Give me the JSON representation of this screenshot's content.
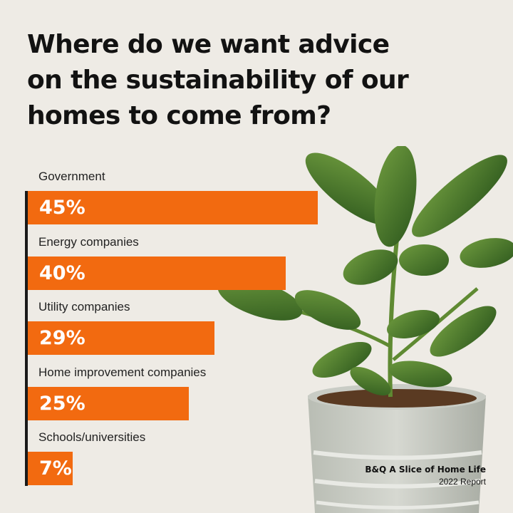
{
  "title_lines": [
    "Where do we want advice",
    "on the sustainability of our",
    "homes to come from?"
  ],
  "chart_data": {
    "type": "bar",
    "orientation": "horizontal",
    "title": "Where do we want advice on the sustainability of our homes to come from?",
    "categories": [
      "Government",
      "Energy companies",
      "Utility companies",
      "Home improvement companies",
      "Schools/universities"
    ],
    "values": [
      45,
      40,
      29,
      25,
      7
    ],
    "value_labels": [
      "45%",
      "40%",
      "29%",
      "25%",
      "7%"
    ],
    "unit": "%",
    "xlim": [
      0,
      100
    ],
    "grid": false,
    "legend": "none",
    "bar_color": "#f26a10"
  },
  "footer": {
    "line1": "B&Q A Slice of Home Life",
    "line2": "2022 Report"
  },
  "colors": {
    "background": "#eeebe5",
    "accent": "#f26a10",
    "text": "#121212"
  }
}
